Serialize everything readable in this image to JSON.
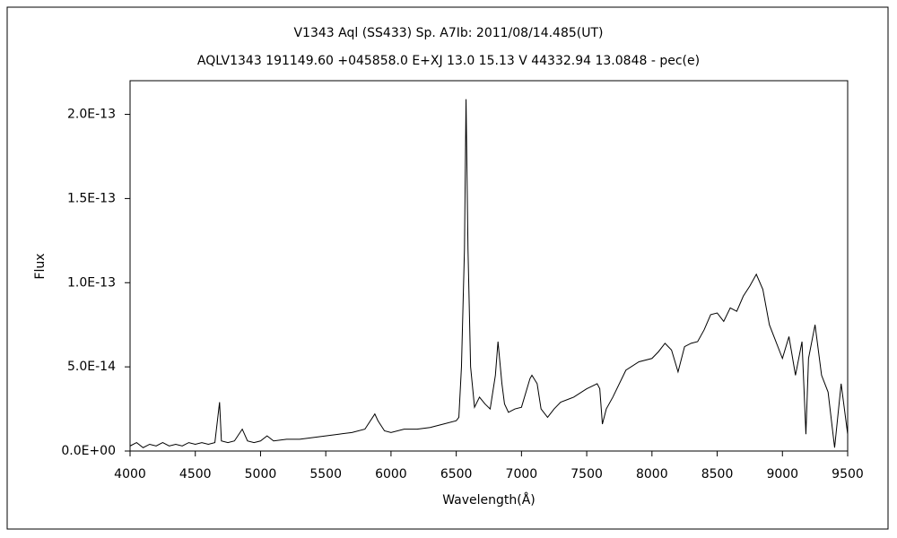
{
  "chart_data": {
    "type": "line",
    "title": "V1343 Aql (SS433)    Sp. A7Ib:    2011/08/14.485(UT)",
    "subtitle": "AQLV1343 191149.60 +045858.0 E+XJ 13.0 15.13 V 44332.94 13.0848 - pec(e)",
    "x_label": "Wavelength(Å)",
    "y_label": "Flux",
    "color": "#000000",
    "x": [
      4000,
      4050,
      4100,
      4150,
      4200,
      4250,
      4300,
      4350,
      4400,
      4450,
      4500,
      4550,
      4600,
      4650,
      4686,
      4700,
      4750,
      4800,
      4860,
      4900,
      4950,
      5000,
      5050,
      5100,
      5200,
      5300,
      5400,
      5500,
      5600,
      5700,
      5800,
      5876,
      5900,
      5950,
      6000,
      6100,
      6200,
      6300,
      6400,
      6500,
      6520,
      6540,
      6563,
      6575,
      6590,
      6610,
      6640,
      6678,
      6720,
      6760,
      6800,
      6820,
      6850,
      6870,
      6900,
      6950,
      7000,
      7065,
      7080,
      7120,
      7150,
      7200,
      7250,
      7300,
      7400,
      7500,
      7580,
      7600,
      7620,
      7650,
      7700,
      7800,
      7900,
      8000,
      8050,
      8100,
      8150,
      8200,
      8250,
      8300,
      8350,
      8400,
      8450,
      8500,
      8550,
      8600,
      8650,
      8700,
      8750,
      8800,
      8850,
      8900,
      8950,
      9000,
      9050,
      9100,
      9150,
      9180,
      9200,
      9250,
      9300,
      9350,
      9400,
      9450,
      9500
    ],
    "values": [
      3e-15,
      5e-15,
      2e-15,
      4e-15,
      3e-15,
      5e-15,
      3e-15,
      4e-15,
      3e-15,
      5e-15,
      4e-15,
      5e-15,
      4e-15,
      5e-15,
      2.9e-14,
      6e-15,
      5e-15,
      6e-15,
      1.3e-14,
      6e-15,
      5e-15,
      6e-15,
      9e-15,
      6e-15,
      7e-15,
      7e-15,
      8e-15,
      9e-15,
      1e-14,
      1.1e-14,
      1.3e-14,
      2.2e-14,
      1.8e-14,
      1.2e-14,
      1.1e-14,
      1.3e-14,
      1.3e-14,
      1.4e-14,
      1.6e-14,
      1.8e-14,
      2e-14,
      5e-14,
      1.2e-13,
      2.09e-13,
      1.2e-13,
      5e-14,
      2.6e-14,
      3.2e-14,
      2.8e-14,
      2.5e-14,
      4.5e-14,
      6.5e-14,
      4e-14,
      2.8e-14,
      2.3e-14,
      2.5e-14,
      2.6e-14,
      4.3e-14,
      4.5e-14,
      4e-14,
      2.5e-14,
      2e-14,
      2.5e-14,
      2.9e-14,
      3.2e-14,
      3.7e-14,
      4e-14,
      3.7e-14,
      1.6e-14,
      2.5e-14,
      3.2e-14,
      4.8e-14,
      5.3e-14,
      5.5e-14,
      5.9e-14,
      6.4e-14,
      6e-14,
      4.7e-14,
      6.2e-14,
      6.4e-14,
      6.5e-14,
      7.2e-14,
      8.1e-14,
      8.2e-14,
      7.7e-14,
      8.5e-14,
      8.3e-14,
      9.2e-14,
      9.8e-14,
      1.05e-13,
      9.6e-14,
      7.5e-14,
      6.5e-14,
      5.5e-14,
      6.8e-14,
      4.5e-14,
      6.5e-14,
      1e-14,
      5.5e-14,
      7.5e-14,
      4.5e-14,
      3.5e-14,
      2e-15,
      4e-14,
      1e-14
    ],
    "xlim": [
      4000,
      9500
    ],
    "xticks": [
      4000,
      4500,
      5000,
      5500,
      6000,
      6500,
      7000,
      7500,
      8000,
      8500,
      9000,
      9500
    ],
    "ylim": [
      0,
      2.2e-13
    ],
    "yticks": [
      {
        "value": 0,
        "label": "0.0E+00"
      },
      {
        "value": 5e-14,
        "label": "5.0E-14"
      },
      {
        "value": 1e-13,
        "label": "1.0E-13"
      },
      {
        "value": 1.5e-13,
        "label": "1.5E-13"
      },
      {
        "value": 2e-13,
        "label": "2.0E-13"
      }
    ],
    "grid": false
  }
}
